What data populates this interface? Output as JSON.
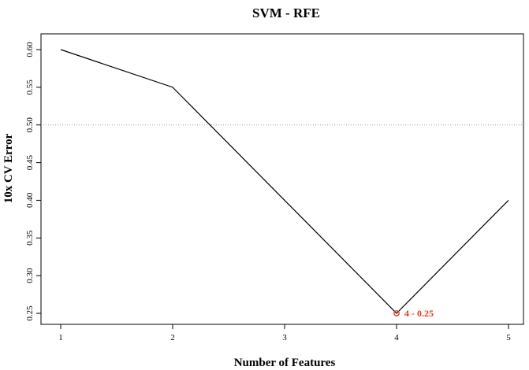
{
  "chart_data": {
    "type": "line",
    "title": "SVM - RFE",
    "xlabel": "Number of Features",
    "ylabel": "10x CV Error",
    "x": [
      1,
      2,
      3,
      4,
      5
    ],
    "xticks": [
      "1",
      "2",
      "3",
      "4",
      "5"
    ],
    "yticks": [
      "0.25",
      "0.30",
      "0.35",
      "0.40",
      "0.45",
      "0.50",
      "0.55",
      "0.60"
    ],
    "series": [
      {
        "values": [
          0.6,
          0.55,
          0.4,
          0.25,
          0.4
        ],
        "color": "#000000"
      }
    ],
    "xlim": [
      1,
      5
    ],
    "ylim": [
      0.25,
      0.6
    ],
    "reference_line": {
      "y": 0.5,
      "style": "dotted",
      "color": "#999999"
    },
    "highlight": {
      "x": 4,
      "y": 0.25,
      "label": "4 - 0.25",
      "color": "#e8391d"
    },
    "grid": false,
    "legend": "none"
  }
}
